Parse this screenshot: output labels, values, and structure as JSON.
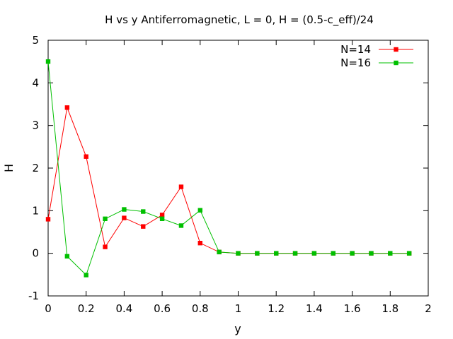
{
  "chart_data": {
    "type": "line",
    "title": "H vs y Antiferromagnetic, L = 0, H = (0.5-c_eff)/24",
    "xlabel": "y",
    "ylabel": "H",
    "xlim": [
      0,
      2
    ],
    "ylim": [
      -1,
      5
    ],
    "xticks": [
      "0",
      "0.2",
      "0.4",
      "0.6",
      "0.8",
      "1",
      "1.2",
      "1.4",
      "1.6",
      "1.8",
      "2"
    ],
    "yticks": [
      "-1",
      "0",
      "1",
      "2",
      "3",
      "4",
      "5"
    ],
    "grid": false,
    "legend_position": "top-right",
    "series": [
      {
        "name": "N=14",
        "color": "#ff0000",
        "marker": "square",
        "points": [
          [
            0,
            0.8
          ],
          [
            0.1,
            3.42
          ],
          [
            0.2,
            2.27
          ],
          [
            0.3,
            0.15
          ],
          [
            0.4,
            0.83
          ],
          [
            0.5,
            0.63
          ],
          [
            0.6,
            0.9
          ],
          [
            0.7,
            1.56
          ],
          [
            0.8,
            0.24
          ],
          [
            0.9,
            0.03
          ],
          [
            1.0,
            0.0
          ],
          [
            1.1,
            0.0
          ],
          [
            1.2,
            0.0
          ],
          [
            1.3,
            0.0
          ],
          [
            1.4,
            0.0
          ],
          [
            1.5,
            0.0
          ],
          [
            1.6,
            0.0
          ],
          [
            1.7,
            0.0
          ],
          [
            1.8,
            0.0
          ],
          [
            1.9,
            0.0
          ]
        ]
      },
      {
        "name": "N=16",
        "color": "#00c000",
        "marker": "square",
        "points": [
          [
            0,
            4.5
          ],
          [
            0.1,
            -0.07
          ],
          [
            0.2,
            -0.51
          ],
          [
            0.3,
            0.81
          ],
          [
            0.4,
            1.03
          ],
          [
            0.5,
            0.98
          ],
          [
            0.6,
            0.81
          ],
          [
            0.7,
            0.65
          ],
          [
            0.8,
            1.01
          ],
          [
            0.9,
            0.03
          ],
          [
            1.0,
            0.0
          ],
          [
            1.1,
            0.0
          ],
          [
            1.2,
            0.0
          ],
          [
            1.3,
            0.0
          ],
          [
            1.4,
            0.0
          ],
          [
            1.5,
            0.0
          ],
          [
            1.6,
            0.0
          ],
          [
            1.7,
            0.0
          ],
          [
            1.8,
            0.0
          ],
          [
            1.9,
            0.0
          ]
        ]
      }
    ]
  }
}
